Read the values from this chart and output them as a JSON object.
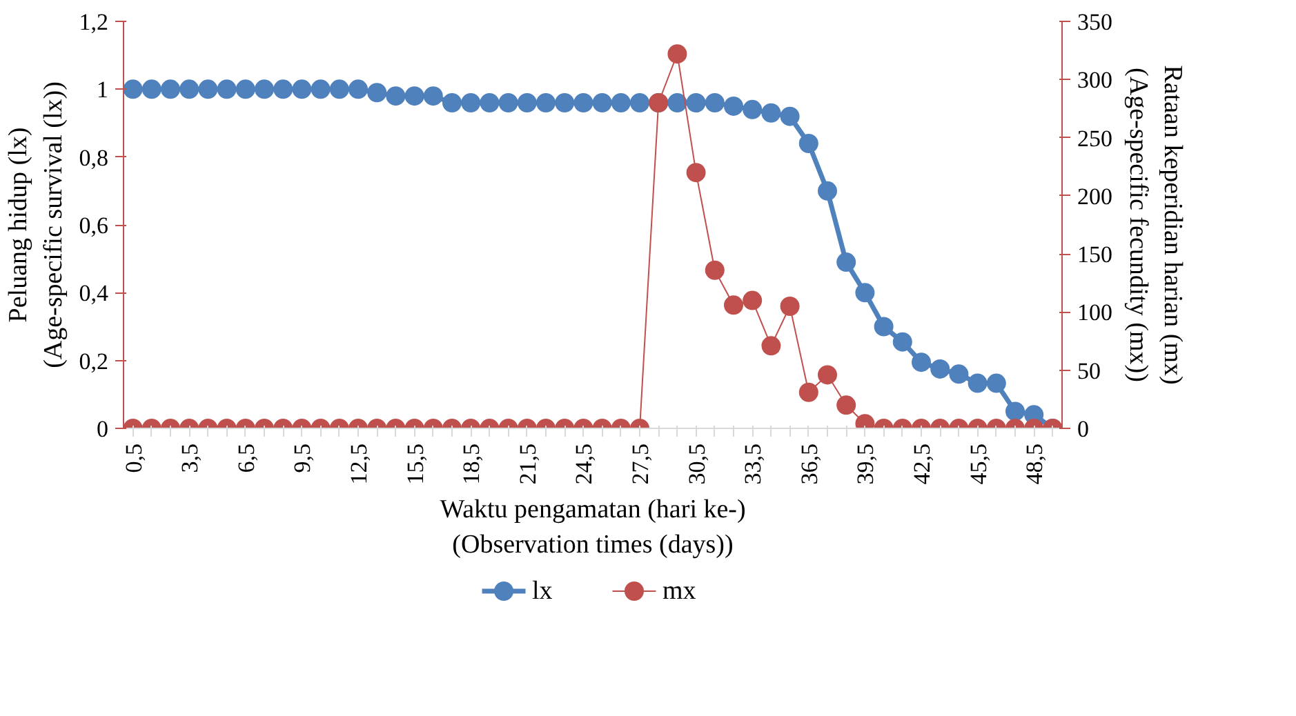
{
  "chart_data": {
    "type": "line",
    "xlabel": "Waktu pengamatan (hari ke-)\n(Observation times (days))",
    "ylabel": "Peluang hidup (lx)\n(Age-specific survival (lx))",
    "y2label": "Rataan keperidian harian (mx)\n(Age-specific fecundity (mx))",
    "categories": [
      "0,5",
      null,
      null,
      "3,5",
      null,
      null,
      "6,5",
      null,
      null,
      "9,5",
      null,
      null,
      "12,5",
      null,
      null,
      "15,5",
      null,
      null,
      "18,5",
      null,
      null,
      "21,5",
      null,
      null,
      "24,5",
      null,
      null,
      "27,5",
      null,
      null,
      "30,5",
      null,
      null,
      "33,5",
      null,
      null,
      "36,5",
      null,
      null,
      "39,5",
      null,
      null,
      "42,5",
      null,
      null,
      "45,5",
      null,
      null,
      "48,5",
      null
    ],
    "series": [
      {
        "name": "lx",
        "color": "#4f81bd",
        "values": [
          1,
          1,
          1,
          1,
          1,
          1,
          1,
          1,
          1,
          1,
          1,
          1,
          1,
          0.99,
          0.98,
          0.98,
          0.98,
          0.96,
          0.96,
          0.96,
          0.96,
          0.96,
          0.96,
          0.96,
          0.96,
          0.96,
          0.96,
          0.96,
          0.96,
          0.96,
          0.96,
          0.96,
          0.95,
          0.94,
          0.93,
          0.92,
          0.84,
          0.7,
          0.49,
          0.4,
          0.3,
          0.255,
          0.195,
          0.175,
          0.16,
          0.133,
          0.133,
          0.05,
          0.04,
          0
        ]
      },
      {
        "name": "mx",
        "color": "#c0504d",
        "axis": "y2",
        "values": [
          0,
          0,
          0,
          0,
          0,
          0,
          0,
          0,
          0,
          0,
          0,
          0,
          0,
          0,
          0,
          0,
          0,
          0,
          0,
          0,
          0,
          0,
          0,
          0,
          0,
          0,
          0,
          0,
          280,
          322,
          220,
          136,
          106,
          110,
          71,
          105,
          31,
          46,
          20,
          4,
          0,
          0,
          0,
          0,
          0,
          0,
          0,
          0,
          0,
          0
        ]
      }
    ],
    "ylim": [
      0,
      1.2
    ],
    "yticks": [
      0,
      {
        "value": 0.2,
        "label": "0,2"
      },
      {
        "value": 0.4,
        "label": "0,4"
      },
      {
        "value": 0.6,
        "label": "0,6"
      },
      {
        "value": 0.8,
        "label": "0,8"
      },
      1,
      {
        "value": 1.2,
        "label": "1,2"
      }
    ],
    "y2lim": [
      0,
      350
    ],
    "y2ticks": [
      0,
      50,
      100,
      150,
      200,
      250,
      300,
      350
    ],
    "marker": "circle",
    "grid": false,
    "legend": "bottom"
  }
}
